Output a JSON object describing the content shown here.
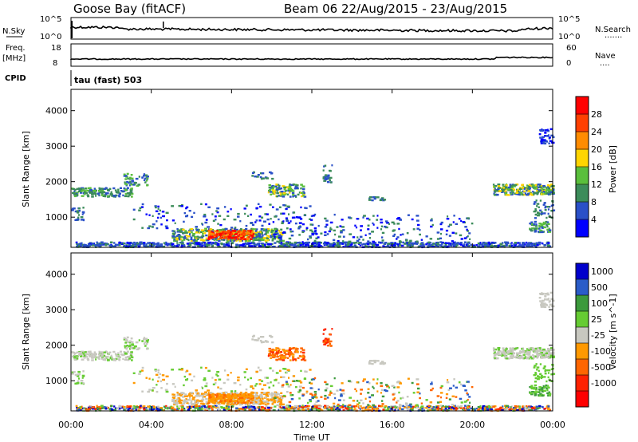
{
  "header": {
    "station": "Goose Bay (fitACF)",
    "beam_dates": "Beam 06 22/Aug/2015 - 23/Aug/2015"
  },
  "top_panels": {
    "nsky_label": "N.Sky",
    "nsearch_label": "N.Search",
    "nsearch_dots": "·······",
    "left_ticks": [
      "10^5",
      "10^0"
    ],
    "right_ticks": [
      "10^5",
      "10^0"
    ],
    "freq_label_1": "Freq.",
    "freq_label_2": "[MHz]",
    "freq_ticks": [
      "18",
      "8"
    ],
    "nave_label": "Nave",
    "nave_dots": "····",
    "nave_ticks": [
      "60",
      "0"
    ],
    "cpid_label": "CPID",
    "cpid_text": "tau (fast) 503"
  },
  "chart_data": [
    {
      "type": "heatmap",
      "name": "power",
      "ylabel": "Slant Range [km]",
      "yticks": [
        1000,
        2000,
        3000,
        4000
      ],
      "ylim": [
        150,
        4600
      ],
      "xlim": [
        0,
        24
      ],
      "colorbar_label": "Power [dB]",
      "colorbar_ticks": [
        "4",
        "8",
        "12",
        "16",
        "20",
        "24",
        "28"
      ],
      "colors": [
        "#0000ff",
        "#2a50c8",
        "#3c8c5a",
        "#5abf3c",
        "#ffd500",
        "#ff8c00",
        "#ff4000",
        "#ff0000"
      ]
    },
    {
      "type": "heatmap",
      "name": "velocity",
      "ylabel": "Slant Range [km]",
      "yticks": [
        1000,
        2000,
        3000,
        4000
      ],
      "ylim": [
        150,
        4600
      ],
      "xlim": [
        0,
        24
      ],
      "xlabel": "Time UT",
      "xticks": [
        "00:00",
        "04:00",
        "08:00",
        "12:00",
        "16:00",
        "20:00",
        "00:00"
      ],
      "colorbar_label": "Velocity [m s^-1]",
      "colorbar_ticks": [
        "1000",
        "500",
        "100",
        "25",
        "-25",
        "-100",
        "-500",
        "-1000"
      ],
      "colors": [
        "#0000cc",
        "#2a5cc8",
        "#3c9a3c",
        "#66cc33",
        "#c8c8c0",
        "#ff9900",
        "#ff6600",
        "#ff2200",
        "#ff0000"
      ]
    }
  ]
}
